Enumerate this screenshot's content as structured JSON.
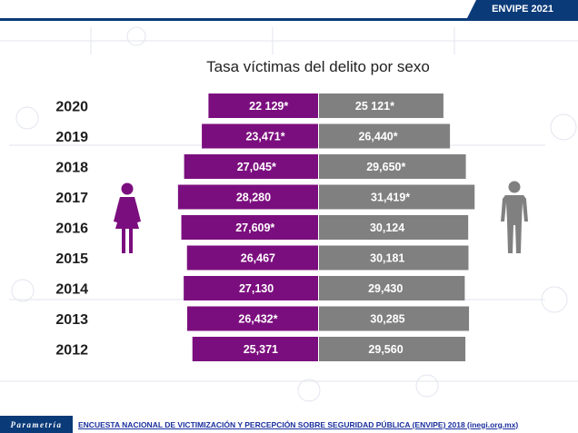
{
  "header": {
    "badge": "ENVIPE 2021"
  },
  "footer": {
    "logo": "Parametría",
    "source": "ENCUESTA NACIONAL DE VICTIMIZACIÓN Y PERCEPCIÓN SOBRE SEGURIDAD PÚBLICA (ENVIPE) 2018 (inegi.org.mx)"
  },
  "icons": {
    "female": "female-figure-icon",
    "male": "male-figure-icon"
  },
  "colors": {
    "female": "#7b0e7e",
    "male": "#808080",
    "brand": "#0a3a78"
  },
  "chart_data": {
    "type": "bar",
    "orientation": "horizontal-diverging",
    "title": "Tasa víctimas del delito por sexo",
    "categories": [
      "2020",
      "2019",
      "2018",
      "2017",
      "2016",
      "2015",
      "2014",
      "2013",
      "2012"
    ],
    "series": [
      {
        "values": [
          22129,
          23471,
          27045,
          28280,
          27609,
          26467,
          27130,
          26432,
          25371
        ],
        "labels": [
          "22 129*",
          "23,471*",
          "27,045*",
          "28,280",
          "27,609*",
          "26,467",
          "27,130",
          "26,432*",
          "25,371"
        ],
        "color": "#7b0e7e"
      },
      {
        "values": [
          25121,
          26440,
          29650,
          31419,
          30124,
          30181,
          29430,
          30285,
          29560
        ],
        "labels": [
          "25 121*",
          "26,440*",
          "29,650*",
          "31,419*",
          "30,124",
          "30,181",
          "29,430",
          "30,285",
          "29,560"
        ],
        "color": "#808080"
      }
    ]
  }
}
